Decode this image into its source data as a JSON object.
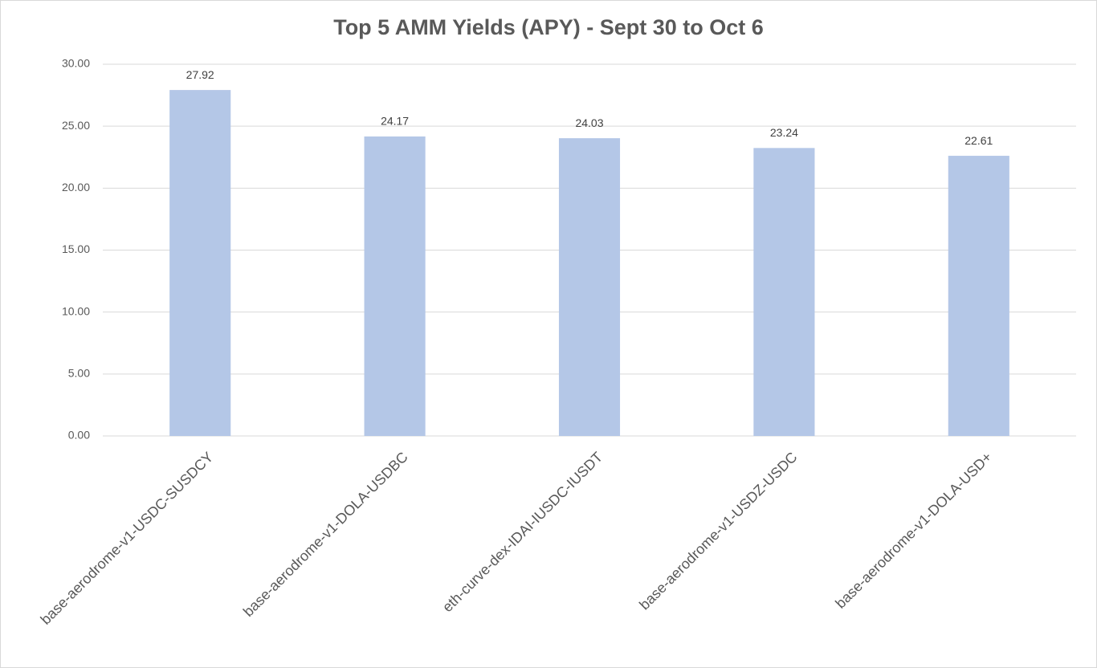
{
  "chart_data": {
    "type": "bar",
    "title": "Top 5 AMM Yields (APY) - Sept 30 to Oct 6",
    "categories": [
      "base-aerodrome-v1-USDC-SUSDCY",
      "base-aerodrome-v1-DOLA-USDBC",
      "eth-curve-dex-IDAI-IUSDC-IUSDT",
      "base-aerodrome-v1-USDZ-USDC",
      "base-aerodrome-v1-DOLA-USD+"
    ],
    "values": [
      27.92,
      24.17,
      24.03,
      23.24,
      22.61
    ],
    "color": "#b4c7e7",
    "ylim": [
      0,
      30
    ],
    "yticks": [
      {
        "value": 0,
        "label": "0.00"
      },
      {
        "value": 5,
        "label": "5.00"
      },
      {
        "value": 10,
        "label": "10.00"
      },
      {
        "value": 15,
        "label": "15.00"
      },
      {
        "value": 20,
        "label": "20.00"
      },
      {
        "value": 25,
        "label": "25.00"
      },
      {
        "value": 30,
        "label": "30.00"
      }
    ],
    "grid": true
  }
}
